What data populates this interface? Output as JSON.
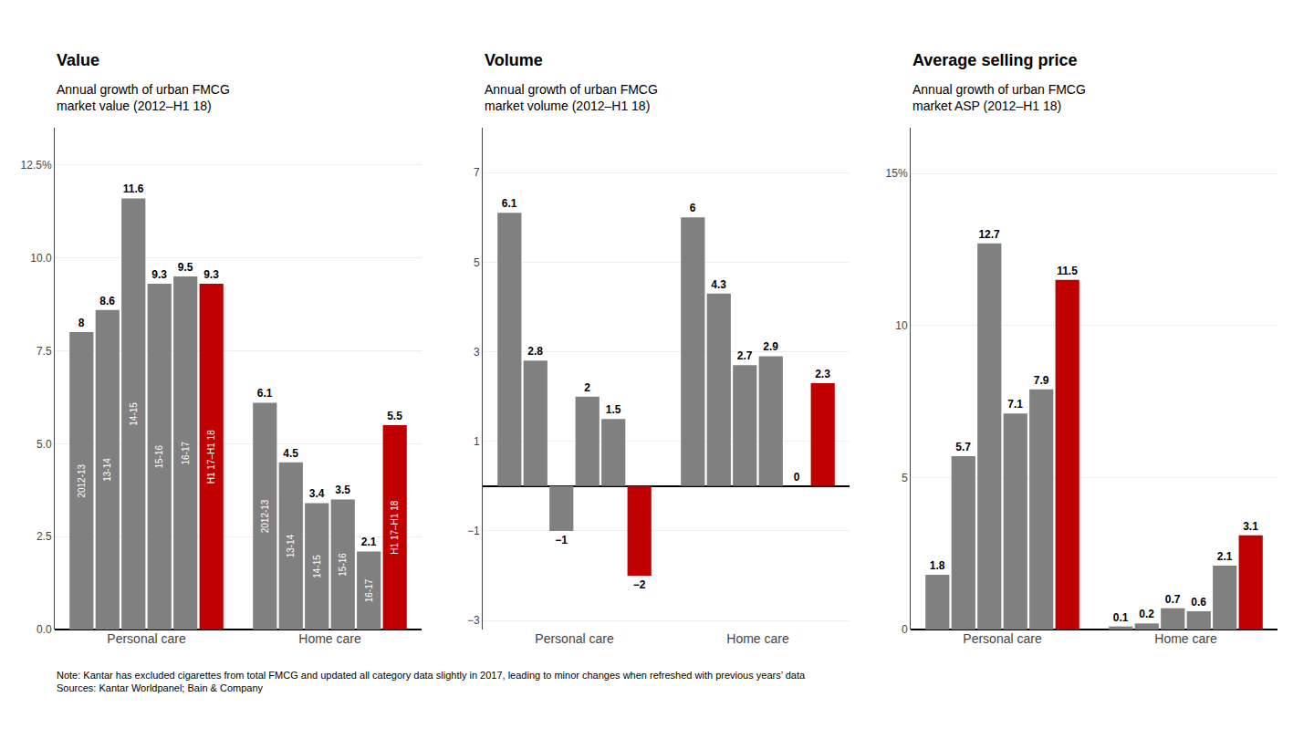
{
  "chart_data": [
    {
      "type": "bar",
      "title": "Value",
      "subtitle": "Annual growth of urban FMCG\nmarket value (2012–H1 18)",
      "categories": [
        "Personal care",
        "Home care"
      ],
      "series": [
        {
          "name": "2012-13",
          "color": "#808080",
          "values": [
            8.0,
            6.1
          ]
        },
        {
          "name": "13-14",
          "color": "#808080",
          "values": [
            8.6,
            4.5
          ]
        },
        {
          "name": "14-15",
          "color": "#808080",
          "values": [
            11.6,
            3.4
          ]
        },
        {
          "name": "15-16",
          "color": "#808080",
          "values": [
            9.3,
            3.5
          ]
        },
        {
          "name": "16-17",
          "color": "#808080",
          "values": [
            9.5,
            2.1
          ]
        },
        {
          "name": "H1 17–H1 18",
          "color": "#c00000",
          "values": [
            9.3,
            5.5
          ]
        }
      ],
      "ylim": [
        0,
        13.5
      ],
      "yticks": [
        {
          "value": 0.0,
          "label": "0.0"
        },
        2.5,
        {
          "value": 5.0,
          "label": "5.0"
        },
        7.5,
        {
          "value": 10.0,
          "label": "10.0"
        },
        {
          "value": 12.5,
          "label": "12.5%"
        }
      ],
      "grid": true,
      "data_labels": true
    },
    {
      "type": "bar",
      "title": "Volume",
      "subtitle": "Annual growth of urban FMCG\nmarket volume (2012–H1 18)",
      "categories": [
        "Personal care",
        "Home care"
      ],
      "series": [
        {
          "color": "#808080",
          "values": [
            6.1,
            6.0
          ]
        },
        {
          "color": "#808080",
          "values": [
            2.8,
            4.3
          ]
        },
        {
          "color": "#808080",
          "values": [
            -1.0,
            2.7
          ],
          "value_labels": [
            "−1",
            "2.7"
          ]
        },
        {
          "color": "#808080",
          "values": [
            2.0,
            2.9
          ]
        },
        {
          "color": "#808080",
          "values": [
            1.5,
            0.0
          ]
        },
        {
          "color": "#c00000",
          "values": [
            -2.0,
            2.3
          ],
          "value_labels": [
            "−2",
            "2.3"
          ]
        }
      ],
      "ylim": [
        -3.2,
        8.0
      ],
      "yticks": [
        {
          "value": -3,
          "label": "−3"
        },
        {
          "value": -1,
          "label": "−1"
        },
        1,
        3,
        5,
        7
      ],
      "grid": true,
      "data_labels": true
    },
    {
      "type": "bar",
      "title": "Average selling price",
      "subtitle": "Annual growth of urban FMCG\nmarket ASP (2012–H1 18)",
      "categories": [
        "Personal care",
        "Home care"
      ],
      "series": [
        {
          "color": "#808080",
          "values": [
            1.8,
            0.1
          ]
        },
        {
          "color": "#808080",
          "values": [
            5.7,
            0.2
          ]
        },
        {
          "color": "#808080",
          "values": [
            12.7,
            0.7
          ]
        },
        {
          "color": "#808080",
          "values": [
            7.1,
            0.6
          ]
        },
        {
          "color": "#808080",
          "values": [
            7.9,
            2.1
          ]
        },
        {
          "color": "#c00000",
          "values": [
            11.5,
            3.1
          ]
        }
      ],
      "ylim": [
        0,
        16.5
      ],
      "yticks": [
        0,
        5,
        10,
        {
          "value": 15,
          "label": "15%"
        }
      ],
      "grid": true,
      "data_labels": true
    }
  ],
  "note": "Note: Kantar has excluded cigarettes from total FMCG and updated all category data slightly in 2017, leading to minor changes when refreshed with previous years’ data\nSources: Kantar Worldpanel; Bain & Company"
}
